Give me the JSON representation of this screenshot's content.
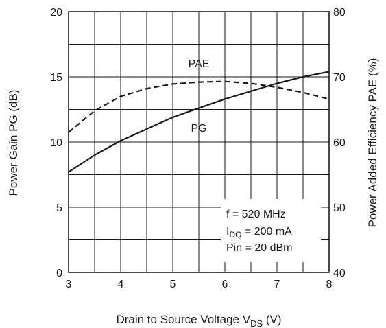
{
  "chart_data": {
    "type": "line",
    "xlabel": {
      "main": "Drain to Source Voltage V",
      "sub": "DS",
      "unit": " (V)"
    },
    "ylabel_left": "Power Gain PG (dB)",
    "ylabel_right": "Power Added Efficiency PAE (%)",
    "x_ticks": [
      "3",
      "4",
      "5",
      "6",
      "7",
      "8"
    ],
    "y_left_ticks": [
      "0",
      "5",
      "10",
      "15",
      "20"
    ],
    "y_right_ticks": [
      "40",
      "50",
      "60",
      "70",
      "80"
    ],
    "xlim": [
      3,
      8
    ],
    "ylim_left": [
      0,
      20
    ],
    "ylim_right": [
      40,
      80
    ],
    "grid": true,
    "series": [
      {
        "name": "PG",
        "axis": "left",
        "style": "solid",
        "x": [
          3.0,
          3.5,
          4.0,
          4.5,
          5.0,
          5.5,
          6.0,
          6.5,
          7.0,
          7.5,
          8.0
        ],
        "y": [
          7.7,
          9.0,
          10.1,
          11.0,
          11.9,
          12.6,
          13.3,
          13.9,
          14.5,
          15.0,
          15.4
        ]
      },
      {
        "name": "PAE",
        "axis": "right",
        "style": "dashed",
        "x": [
          3.0,
          3.5,
          4.0,
          4.5,
          5.0,
          5.5,
          6.0,
          6.5,
          7.0,
          7.5,
          8.0
        ],
        "y": [
          61.5,
          64.8,
          67.0,
          68.2,
          68.9,
          69.2,
          69.3,
          69.0,
          68.4,
          67.6,
          66.6
        ]
      }
    ],
    "annotations": [
      {
        "text": "f = 520 MHz"
      },
      {
        "main": "I",
        "sub": "DQ",
        "rest": " = 200 mA"
      },
      {
        "text": "Pin = 20 dBm"
      }
    ],
    "colors": {
      "line": "#1a1a1a",
      "grid": "#1a1a1a"
    }
  }
}
